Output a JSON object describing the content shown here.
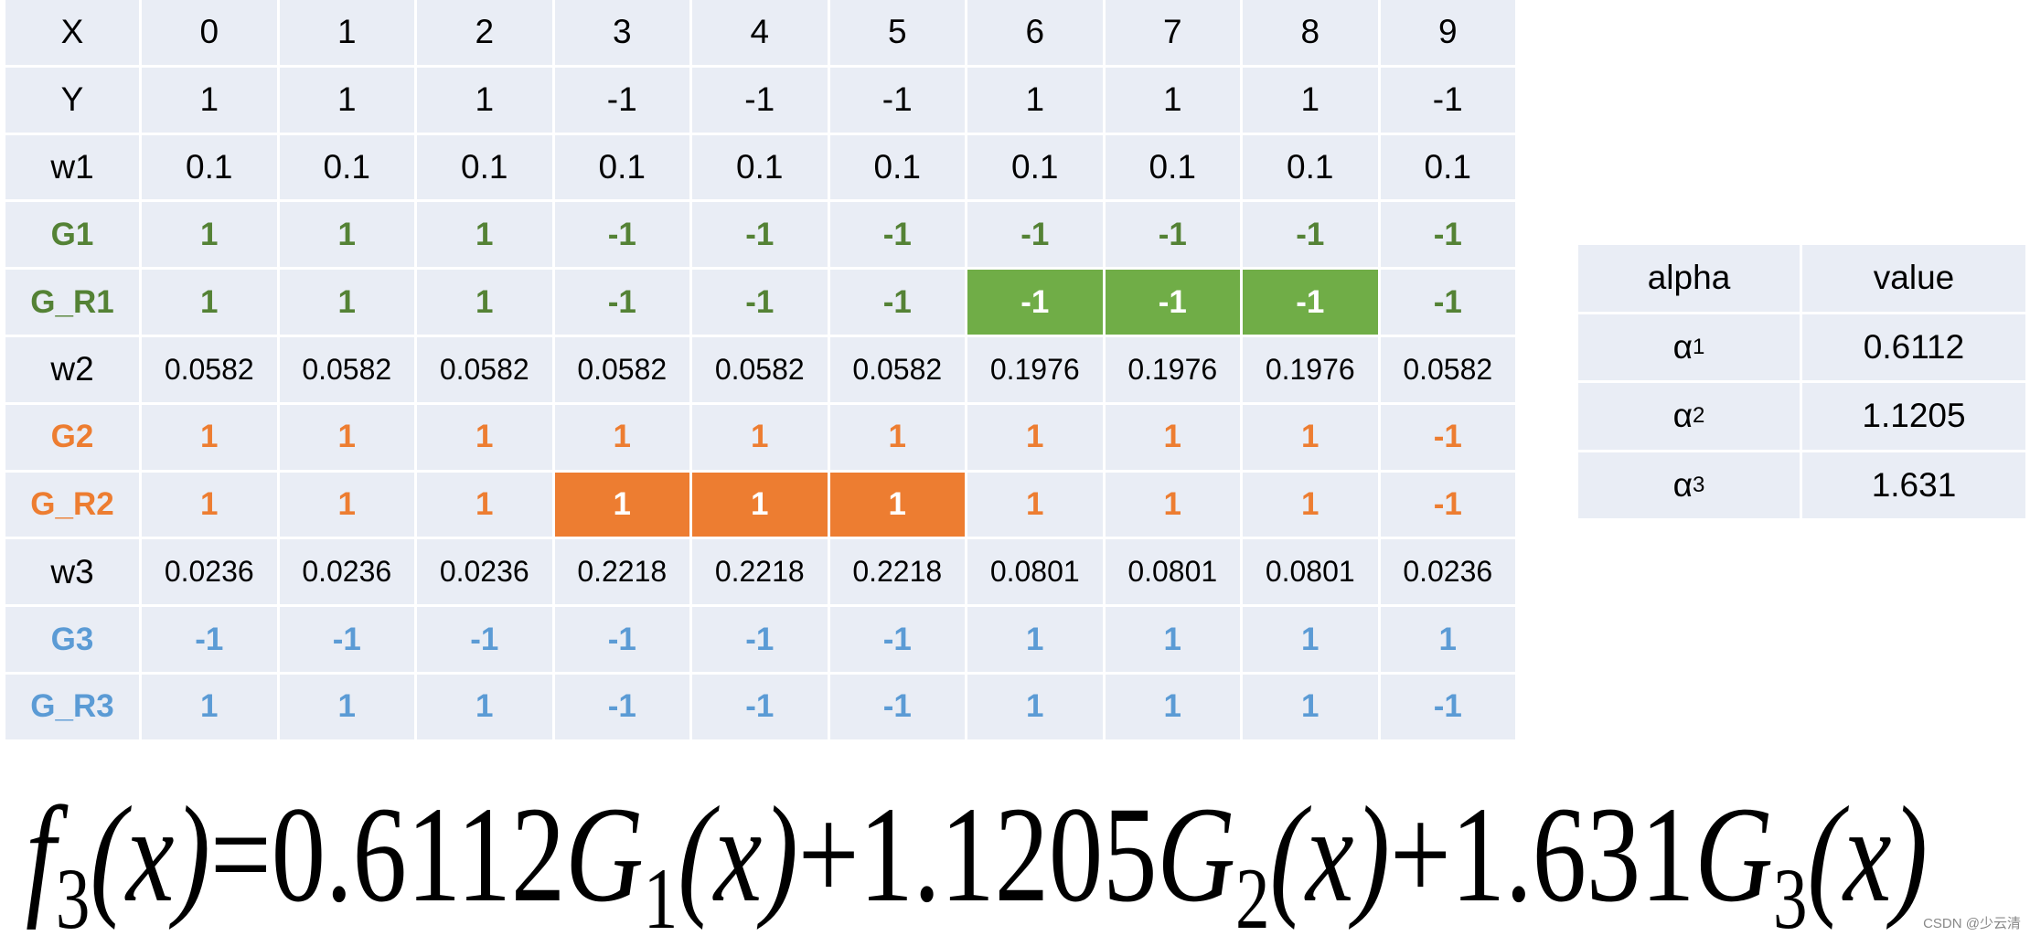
{
  "table": {
    "rows": [
      {
        "cells": [
          "X",
          "0",
          "1",
          "2",
          "3",
          "4",
          "5",
          "6",
          "7",
          "8",
          "9"
        ],
        "color": "#000000",
        "bold": false
      },
      {
        "cells": [
          "Y",
          "1",
          "1",
          "1",
          "-1",
          "-1",
          "-1",
          "1",
          "1",
          "1",
          "-1"
        ],
        "color": "#000000",
        "bold": false
      },
      {
        "cells": [
          "w1",
          "0.1",
          "0.1",
          "0.1",
          "0.1",
          "0.1",
          "0.1",
          "0.1",
          "0.1",
          "0.1",
          "0.1"
        ],
        "color": "#000000",
        "bold": false
      },
      {
        "cells": [
          "G1",
          "1",
          "1",
          "1",
          "-1",
          "-1",
          "-1",
          "-1",
          "-1",
          "-1",
          "-1"
        ],
        "color": "#548235",
        "bold": true
      },
      {
        "cells": [
          "G_R1",
          "1",
          "1",
          "1",
          "-1",
          "-1",
          "-1",
          "-1",
          "-1",
          "-1",
          "-1"
        ],
        "color": "#548235",
        "bold": true,
        "highlight": {
          "cols": [
            7,
            8,
            9
          ],
          "fill": "#70ad47"
        }
      },
      {
        "cells": [
          "w2",
          "0.0582",
          "0.0582",
          "0.0582",
          "0.0582",
          "0.0582",
          "0.0582",
          "0.1976",
          "0.1976",
          "0.1976",
          "0.0582"
        ],
        "color": "#000000",
        "bold": false,
        "small": true
      },
      {
        "cells": [
          "G2",
          "1",
          "1",
          "1",
          "1",
          "1",
          "1",
          "1",
          "1",
          "1",
          "-1"
        ],
        "color": "#ed7d31",
        "bold": true
      },
      {
        "cells": [
          "G_R2",
          "1",
          "1",
          "1",
          "1",
          "1",
          "1",
          "1",
          "1",
          "1",
          "-1"
        ],
        "color": "#ed7d31",
        "bold": true,
        "highlight": {
          "cols": [
            4,
            5,
            6
          ],
          "fill": "#ed7d31"
        }
      },
      {
        "cells": [
          "w3",
          "0.0236",
          "0.0236",
          "0.0236",
          "0.2218",
          "0.2218",
          "0.2218",
          "0.0801",
          "0.0801",
          "0.0801",
          "0.0236"
        ],
        "color": "#000000",
        "bold": false,
        "small": true
      },
      {
        "cells": [
          "G3",
          "-1",
          "-1",
          "-1",
          "-1",
          "-1",
          "-1",
          "1",
          "1",
          "1",
          "1"
        ],
        "color": "#5b9bd5",
        "bold": true
      },
      {
        "cells": [
          "G_R3",
          "1",
          "1",
          "1",
          "-1",
          "-1",
          "-1",
          "1",
          "1",
          "1",
          "-1"
        ],
        "color": "#5b9bd5",
        "bold": true
      }
    ]
  },
  "alpha_table": {
    "header": [
      "alpha",
      "value"
    ],
    "rows": [
      {
        "symbol": "α",
        "sub": "1",
        "value": "0.6112"
      },
      {
        "symbol": "α",
        "sub": "2",
        "value": "1.1205"
      },
      {
        "symbol": "α",
        "sub": "3",
        "value": "1.631"
      }
    ]
  },
  "formula": {
    "lhs": {
      "name": "f",
      "sub": "3",
      "arg": "(x)"
    },
    "equals": "=",
    "plus": "+",
    "terms": [
      {
        "coef": "0.6112",
        "name": "G",
        "sub": "1",
        "arg": "(x)"
      },
      {
        "coef": "1.1205",
        "name": "G",
        "sub": "2",
        "arg": "(x)"
      },
      {
        "coef": "1.631",
        "name": "G",
        "sub": "3",
        "arg": "(x)"
      }
    ]
  },
  "watermark": "CSDN @少云清"
}
